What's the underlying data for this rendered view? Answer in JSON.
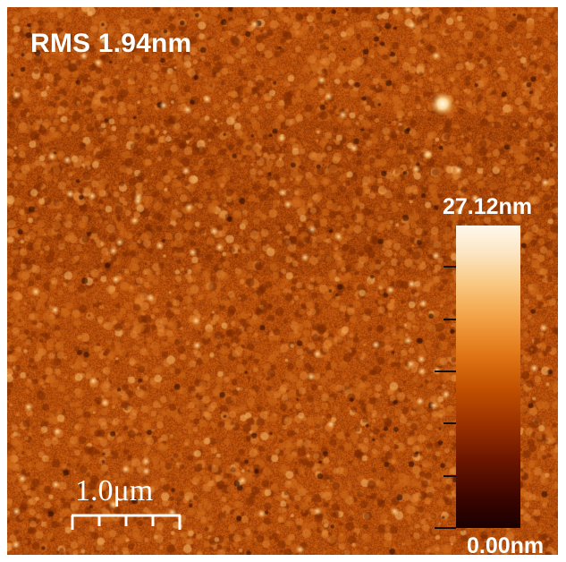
{
  "image": {
    "rms_label": "RMS 1.94nm",
    "scale_bar_label": "1.0μm",
    "colorbar": {
      "max_label": "27.12nm",
      "min_label": "0.00nm",
      "colors": [
        "#1a0000",
        "#6a1500",
        "#c25000",
        "#f3a347",
        "#fff8ec"
      ]
    }
  }
}
